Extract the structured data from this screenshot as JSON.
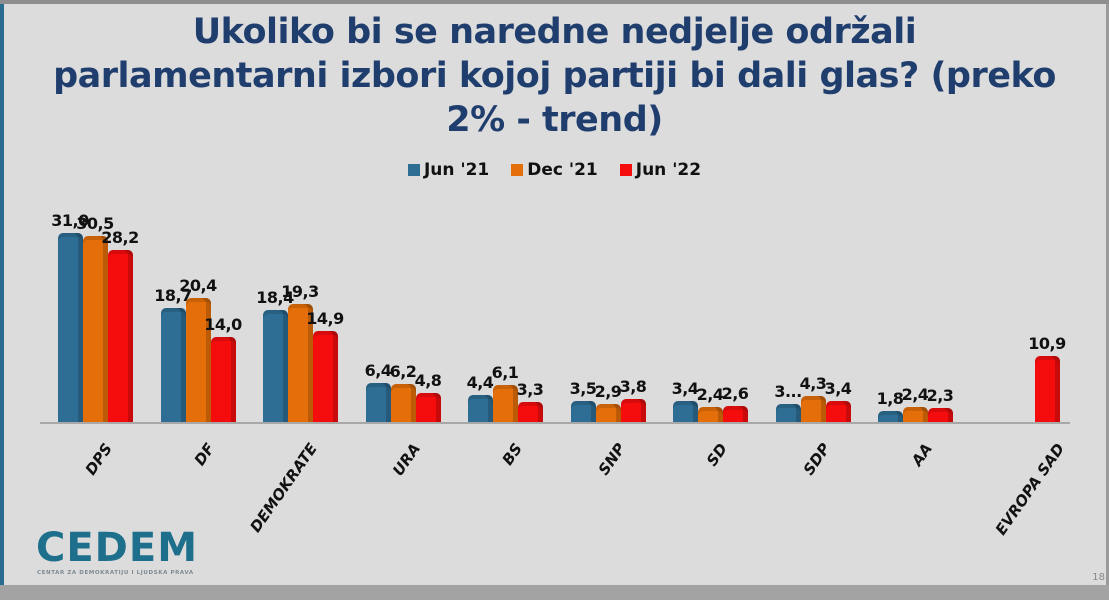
{
  "title": "Ukoliko bi se naredne nedjelje održali parlamentarni izbori kojoj partiji bi dali glas? (preko 2% - trend)",
  "title_lines": [
    "Ukoliko bi se naredne nedjelje održali",
    "parlamentarni izbori kojoj partiji bi dali glas? (preko",
    "2% - trend)"
  ],
  "legend": [
    {
      "label": "Jun '21",
      "color": "#2e6e95"
    },
    {
      "label": "Dec '21",
      "color": "#e46f0a"
    },
    {
      "label": "Jun '22",
      "color": "#f50d0d"
    }
  ],
  "logo": {
    "text": "CEDEM",
    "subtitle": "CENTAR ZA DEMOKRATIJU I LJUDSKA PRAVA"
  },
  "page_number": "18",
  "chart_data": {
    "type": "bar",
    "title": "Ukoliko bi se naredne nedjelje održali parlamentarni izbori kojoj partiji bi dali glas? (preko 2% - trend)",
    "xlabel": "",
    "ylabel": "",
    "categories": [
      "DPS",
      "DF",
      "DEMOKRATE",
      "URA",
      "BS",
      "SNP",
      "SD",
      "SDP",
      "AA",
      "EVROPA SAD"
    ],
    "series": [
      {
        "name": "Jun '21",
        "color": "#2e6e95",
        "values": [
          31.0,
          18.7,
          18.4,
          6.4,
          4.4,
          3.5,
          3.4,
          3.0,
          1.8,
          null
        ],
        "labels": [
          "31,0",
          "18,7",
          "18,4",
          "6,4",
          "4,4",
          "3,5",
          "3,4",
          "3...",
          "1,8",
          ""
        ]
      },
      {
        "name": "Dec '21",
        "color": "#e46f0a",
        "values": [
          30.5,
          20.4,
          19.3,
          6.2,
          6.1,
          2.9,
          2.4,
          4.3,
          2.4,
          null
        ],
        "labels": [
          "30,5",
          "20,4",
          "19,3",
          "6,2",
          "6,1",
          "2,9",
          "2,4",
          "4,3",
          "2,4",
          ""
        ]
      },
      {
        "name": "Jun '22",
        "color": "#f50d0d",
        "values": [
          28.2,
          14.0,
          14.9,
          4.8,
          3.3,
          3.8,
          2.6,
          3.4,
          2.3,
          10.9
        ],
        "labels": [
          "28,2",
          "14,0",
          "14,9",
          "4,8",
          "3,3",
          "3,8",
          "2,6",
          "3,4",
          "2,3",
          "10,9"
        ]
      }
    ],
    "ylim": [
      0,
      32
    ],
    "grid": false,
    "legend_position": "top",
    "data_labels": true,
    "style": "3d-clustered-column"
  }
}
